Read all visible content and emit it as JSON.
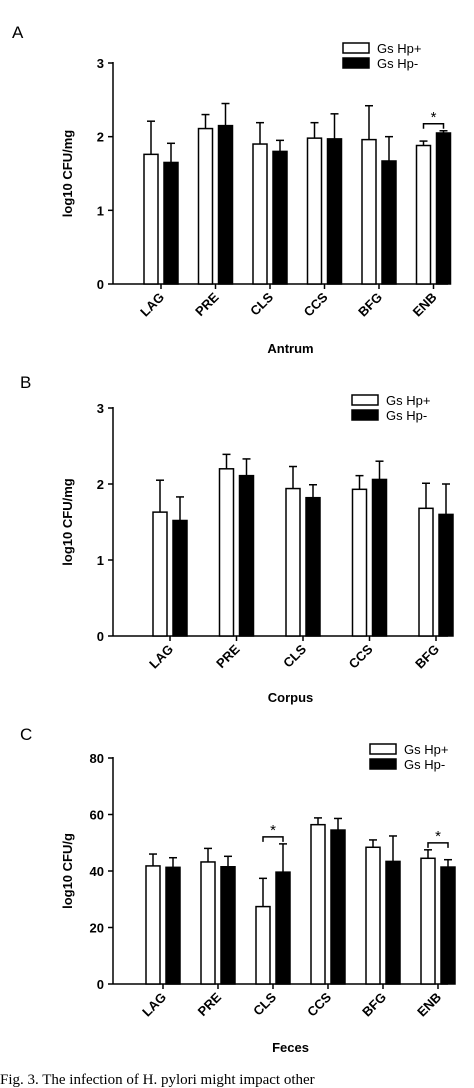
{
  "chart_data": [
    {
      "type": "bar",
      "panel_letter": "A",
      "xlabel": "Antrum",
      "ylabel": "log10 CFU/mg",
      "ylim": [
        0,
        3
      ],
      "yticks": [
        "0",
        "1",
        "2",
        "3"
      ],
      "categories": [
        "LAG",
        "PRE",
        "CLS",
        "CCS",
        "BFG",
        "ENB"
      ],
      "legend": {
        "placement": "top-right",
        "entries": [
          "Gs Hp+",
          "Gs Hp-"
        ]
      },
      "series": [
        {
          "name": "Gs Hp+",
          "fill": "#ffffff",
          "values": [
            1.76,
            2.11,
            1.9,
            1.98,
            1.96,
            1.88
          ],
          "err": [
            0.45,
            0.19,
            0.29,
            0.21,
            0.46,
            0.06
          ]
        },
        {
          "name": "Gs Hp-",
          "fill": "#000000",
          "values": [
            1.65,
            2.15,
            1.8,
            1.97,
            1.67,
            2.05
          ],
          "err": [
            0.26,
            0.3,
            0.15,
            0.34,
            0.33,
            0.03
          ]
        }
      ],
      "significance": [
        {
          "category": "ENB",
          "label": "*"
        }
      ]
    },
    {
      "type": "bar",
      "panel_letter": "B",
      "xlabel": "Corpus",
      "ylabel": "log10 CFU/mg",
      "ylim": [
        0,
        3
      ],
      "yticks": [
        "0",
        "1",
        "2",
        "3"
      ],
      "categories": [
        "LAG",
        "PRE",
        "CLS",
        "CCS",
        "BFG"
      ],
      "legend": {
        "placement": "top-right",
        "entries": [
          "Gs Hp+",
          "Gs Hp-"
        ]
      },
      "series": [
        {
          "name": "Gs Hp+",
          "fill": "#ffffff",
          "values": [
            1.63,
            2.2,
            1.94,
            1.93,
            1.68
          ],
          "err": [
            0.42,
            0.19,
            0.29,
            0.18,
            0.33
          ]
        },
        {
          "name": "Gs Hp-",
          "fill": "#000000",
          "values": [
            1.52,
            2.11,
            1.82,
            2.06,
            1.6
          ],
          "err": [
            0.31,
            0.22,
            0.17,
            0.24,
            0.4
          ]
        }
      ],
      "significance": []
    },
    {
      "type": "bar",
      "panel_letter": "C",
      "xlabel": "Feces",
      "ylabel": "log10 CFU/g",
      "ylim": [
        0,
        80
      ],
      "yticks": [
        "0",
        "20",
        "40",
        "60",
        "80"
      ],
      "categories": [
        "LAG",
        "PRE",
        "CLS",
        "CCS",
        "BFG",
        "ENB"
      ],
      "legend": {
        "placement": "top-right",
        "entries": [
          "Gs Hp+",
          "Gs Hp-"
        ]
      },
      "series": [
        {
          "name": "Gs Hp+",
          "fill": "#ffffff",
          "values": [
            41.8,
            43.2,
            27.4,
            56.4,
            48.4,
            44.5
          ],
          "err": [
            4.2,
            4.8,
            10.0,
            2.4,
            2.6,
            3.0
          ]
        },
        {
          "name": "Gs Hp-",
          "fill": "#000000",
          "values": [
            41.3,
            41.5,
            39.6,
            54.5,
            43.4,
            41.4
          ],
          "err": [
            3.4,
            3.7,
            10.0,
            4.1,
            9.0,
            2.6
          ]
        }
      ],
      "significance": [
        {
          "category": "CLS",
          "label": "*"
        },
        {
          "category": "ENB",
          "label": "*"
        }
      ]
    }
  ],
  "caption": "Fig. 3. The infection of H. pylori might impact other"
}
